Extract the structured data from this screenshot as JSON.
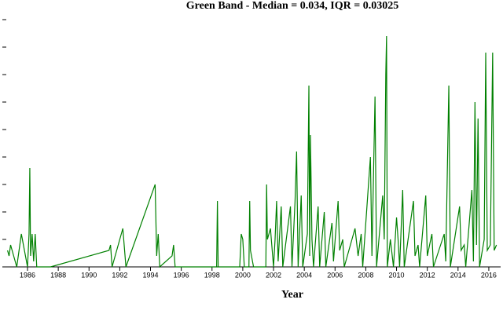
{
  "chart_data": {
    "type": "line",
    "title": "Green Band - Median = 0.034, IQR = 0.03025",
    "xlabel": "Year",
    "x": [
      1984.7,
      1984.8,
      1984.9,
      1985.0,
      1985.3,
      1985.5,
      1985.6,
      1985.8,
      1986.0,
      1986.1,
      1986.15,
      1986.2,
      1986.3,
      1986.4,
      1986.5,
      1986.6,
      1987.5,
      1991.3,
      1991.4,
      1991.5,
      1992.2,
      1992.4,
      1994.3,
      1994.4,
      1994.5,
      1994.6,
      1995.4,
      1995.5,
      1995.6,
      1998.3,
      1998.35,
      1998.4,
      1999.8,
      1999.9,
      2000.0,
      2000.1,
      2000.4,
      2000.45,
      2000.5,
      2000.7,
      2001.5,
      2001.55,
      2001.6,
      2001.8,
      2002.0,
      2002.1,
      2002.2,
      2002.3,
      2002.5,
      2002.6,
      2003.1,
      2003.2,
      2003.4,
      2003.5,
      2003.6,
      2003.8,
      2003.9,
      2004.2,
      2004.3,
      2004.35,
      2004.4,
      2004.5,
      2004.6,
      2004.9,
      2005.0,
      2005.3,
      2005.4,
      2005.8,
      2005.9,
      2006.2,
      2006.3,
      2006.5,
      2006.6,
      2007.3,
      2007.5,
      2007.7,
      2007.8,
      2008.3,
      2008.4,
      2008.6,
      2008.7,
      2009.1,
      2009.2,
      2009.3,
      2009.35,
      2009.4,
      2009.6,
      2009.8,
      2010.0,
      2010.1,
      2010.2,
      2010.4,
      2010.5,
      2011.1,
      2011.2,
      2011.4,
      2011.5,
      2011.9,
      2012.0,
      2012.3,
      2012.4,
      2013.1,
      2013.2,
      2013.4,
      2013.5,
      2014.1,
      2014.2,
      2014.4,
      2014.5,
      2014.9,
      2015.0,
      2015.1,
      2015.2,
      2015.3,
      2015.4,
      2015.7,
      2015.8,
      2015.9,
      2016.1,
      2016.25,
      2016.35,
      2016.5
    ],
    "series": [
      {
        "name": "Green Band",
        "color": "#008000",
        "values": [
          0.03,
          0.02,
          0.04,
          0.03,
          0,
          0.04,
          0.06,
          0.03,
          0,
          0.06,
          0.18,
          0.02,
          0.06,
          0.01,
          0.06,
          0,
          0,
          0.03,
          0.04,
          0,
          0.07,
          0,
          0.15,
          0.02,
          0.06,
          0,
          0.02,
          0.04,
          0,
          0,
          0.12,
          0,
          0,
          0.06,
          0.05,
          0,
          0,
          0.12,
          0.03,
          0,
          0,
          0.15,
          0.05,
          0.07,
          0,
          0.05,
          0.12,
          0.01,
          0.11,
          0,
          0.11,
          0,
          0.12,
          0.21,
          0,
          0.13,
          0,
          0.06,
          0.33,
          0.02,
          0.24,
          0.05,
          0,
          0.11,
          0,
          0.1,
          0,
          0.08,
          0.01,
          0.12,
          0.03,
          0.05,
          0,
          0.07,
          0.02,
          0.06,
          0,
          0.2,
          0.02,
          0.31,
          0,
          0.13,
          0.05,
          0.35,
          0.42,
          0,
          0.05,
          0,
          0.09,
          0.05,
          0,
          0.14,
          0,
          0.12,
          0.02,
          0.04,
          0,
          0.13,
          0.02,
          0.06,
          0,
          0.06,
          0.01,
          0.33,
          0,
          0.11,
          0.03,
          0.04,
          0,
          0.14,
          0.01,
          0.3,
          0.04,
          0.27,
          0,
          0.05,
          0.39,
          0.03,
          0.04,
          0.39,
          0.03,
          0.04
        ]
      }
    ],
    "xlim": [
      1984.62,
      2016.77
    ],
    "xticks": [
      1986,
      1988,
      1990,
      1992,
      1994,
      1996,
      1998,
      2000,
      2002,
      2004,
      2006,
      2008,
      2010,
      2012,
      2014,
      2016
    ],
    "ylim": [
      0,
      0.45
    ],
    "yticks": [
      0,
      0.05,
      0.1,
      0.15,
      0.2,
      0.25,
      0.3,
      0.35,
      0.4,
      0.45
    ]
  }
}
